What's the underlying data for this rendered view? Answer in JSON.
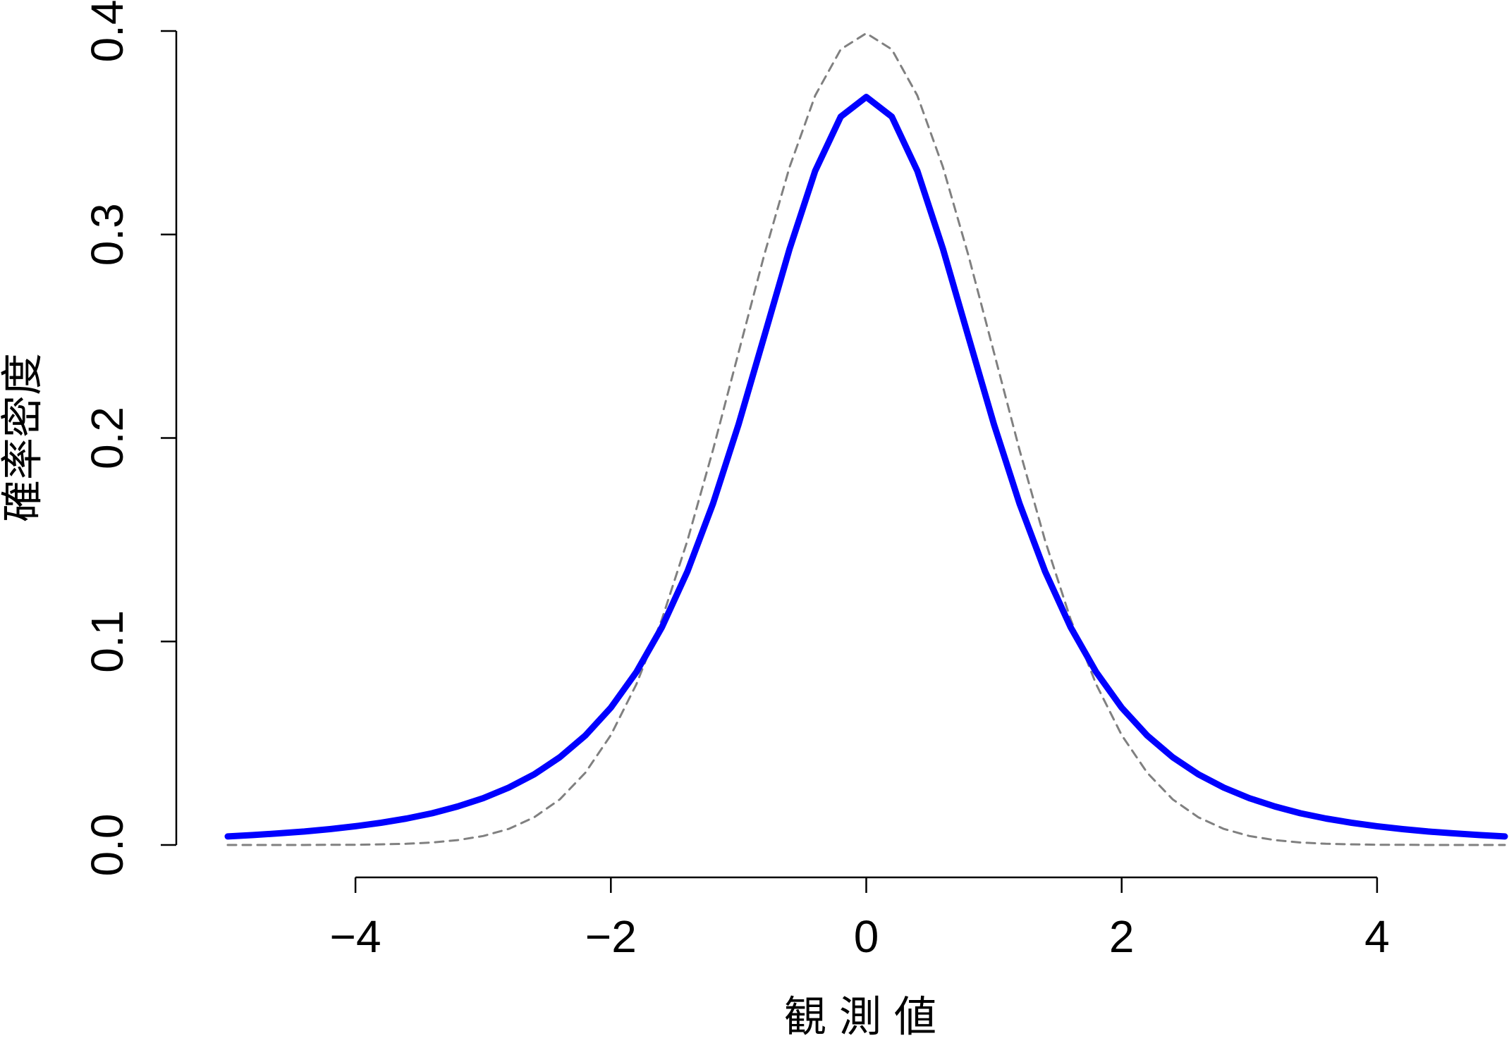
{
  "chart_data": {
    "type": "line",
    "x_label": "観測値",
    "y_label": "確率密度",
    "x": [
      -5,
      -4.8,
      -4.6,
      -4.4,
      -4.2,
      -4,
      -3.8,
      -3.6,
      -3.4,
      -3.2,
      -3,
      -2.8,
      -2.6,
      -2.4,
      -2.2,
      -2,
      -1.8,
      -1.6,
      -1.4,
      -1.2,
      -1,
      -0.8,
      -0.6,
      -0.4,
      -0.2,
      0,
      0.2,
      0.4,
      0.6,
      0.8,
      1,
      1.2,
      1.4,
      1.6,
      1.8,
      2,
      2.2,
      2.4,
      2.6,
      2.8,
      3,
      3.2,
      3.4,
      3.6,
      3.8,
      4,
      4.2,
      4.4,
      4.6,
      4.8,
      5
    ],
    "series": [
      {
        "color": "#808080",
        "line_style": "dashed",
        "values": [
          0,
          0,
          0,
          0,
          0.0001,
          0.0001,
          0.0003,
          0.0006,
          0.0012,
          0.0024,
          0.0044,
          0.0079,
          0.0136,
          0.0224,
          0.0355,
          0.054,
          0.079,
          0.1109,
          0.1497,
          0.1942,
          0.242,
          0.2897,
          0.3332,
          0.3683,
          0.391,
          0.3989,
          0.391,
          0.3683,
          0.3332,
          0.2897,
          0.242,
          0.1942,
          0.1497,
          0.1109,
          0.079,
          0.054,
          0.0355,
          0.0224,
          0.0136,
          0.0079,
          0.0044,
          0.0024,
          0.0012,
          0.0006,
          0.0003,
          0.0001,
          0.0001,
          0,
          0,
          0,
          0
        ]
      },
      {
        "color": "#0000ff",
        "line_style": "solid",
        "values": [
          0.0042,
          0.0049,
          0.0057,
          0.0066,
          0.0078,
          0.0092,
          0.0109,
          0.013,
          0.0156,
          0.0189,
          0.023,
          0.0282,
          0.0347,
          0.0431,
          0.0538,
          0.0675,
          0.085,
          0.107,
          0.1345,
          0.1678,
          0.2067,
          0.2497,
          0.293,
          0.3313,
          0.3579,
          0.3676,
          0.3579,
          0.3313,
          0.293,
          0.2497,
          0.2067,
          0.1678,
          0.1345,
          0.107,
          0.085,
          0.0675,
          0.0538,
          0.0431,
          0.0347,
          0.0282,
          0.023,
          0.0189,
          0.0156,
          0.013,
          0.0109,
          0.0092,
          0.0078,
          0.0066,
          0.0057,
          0.0049,
          0.0042
        ]
      }
    ],
    "xlim": [
      -5,
      5
    ],
    "ylim": [
      0,
      0.4
    ],
    "xticks": [
      {
        "value": -4,
        "label": "−4"
      },
      {
        "value": -2,
        "label": "−2"
      },
      0,
      2,
      4
    ],
    "yticks": [
      {
        "value": 0,
        "label": "0.0"
      },
      0.1,
      0.2,
      0.3,
      0.4
    ],
    "grid": false
  }
}
